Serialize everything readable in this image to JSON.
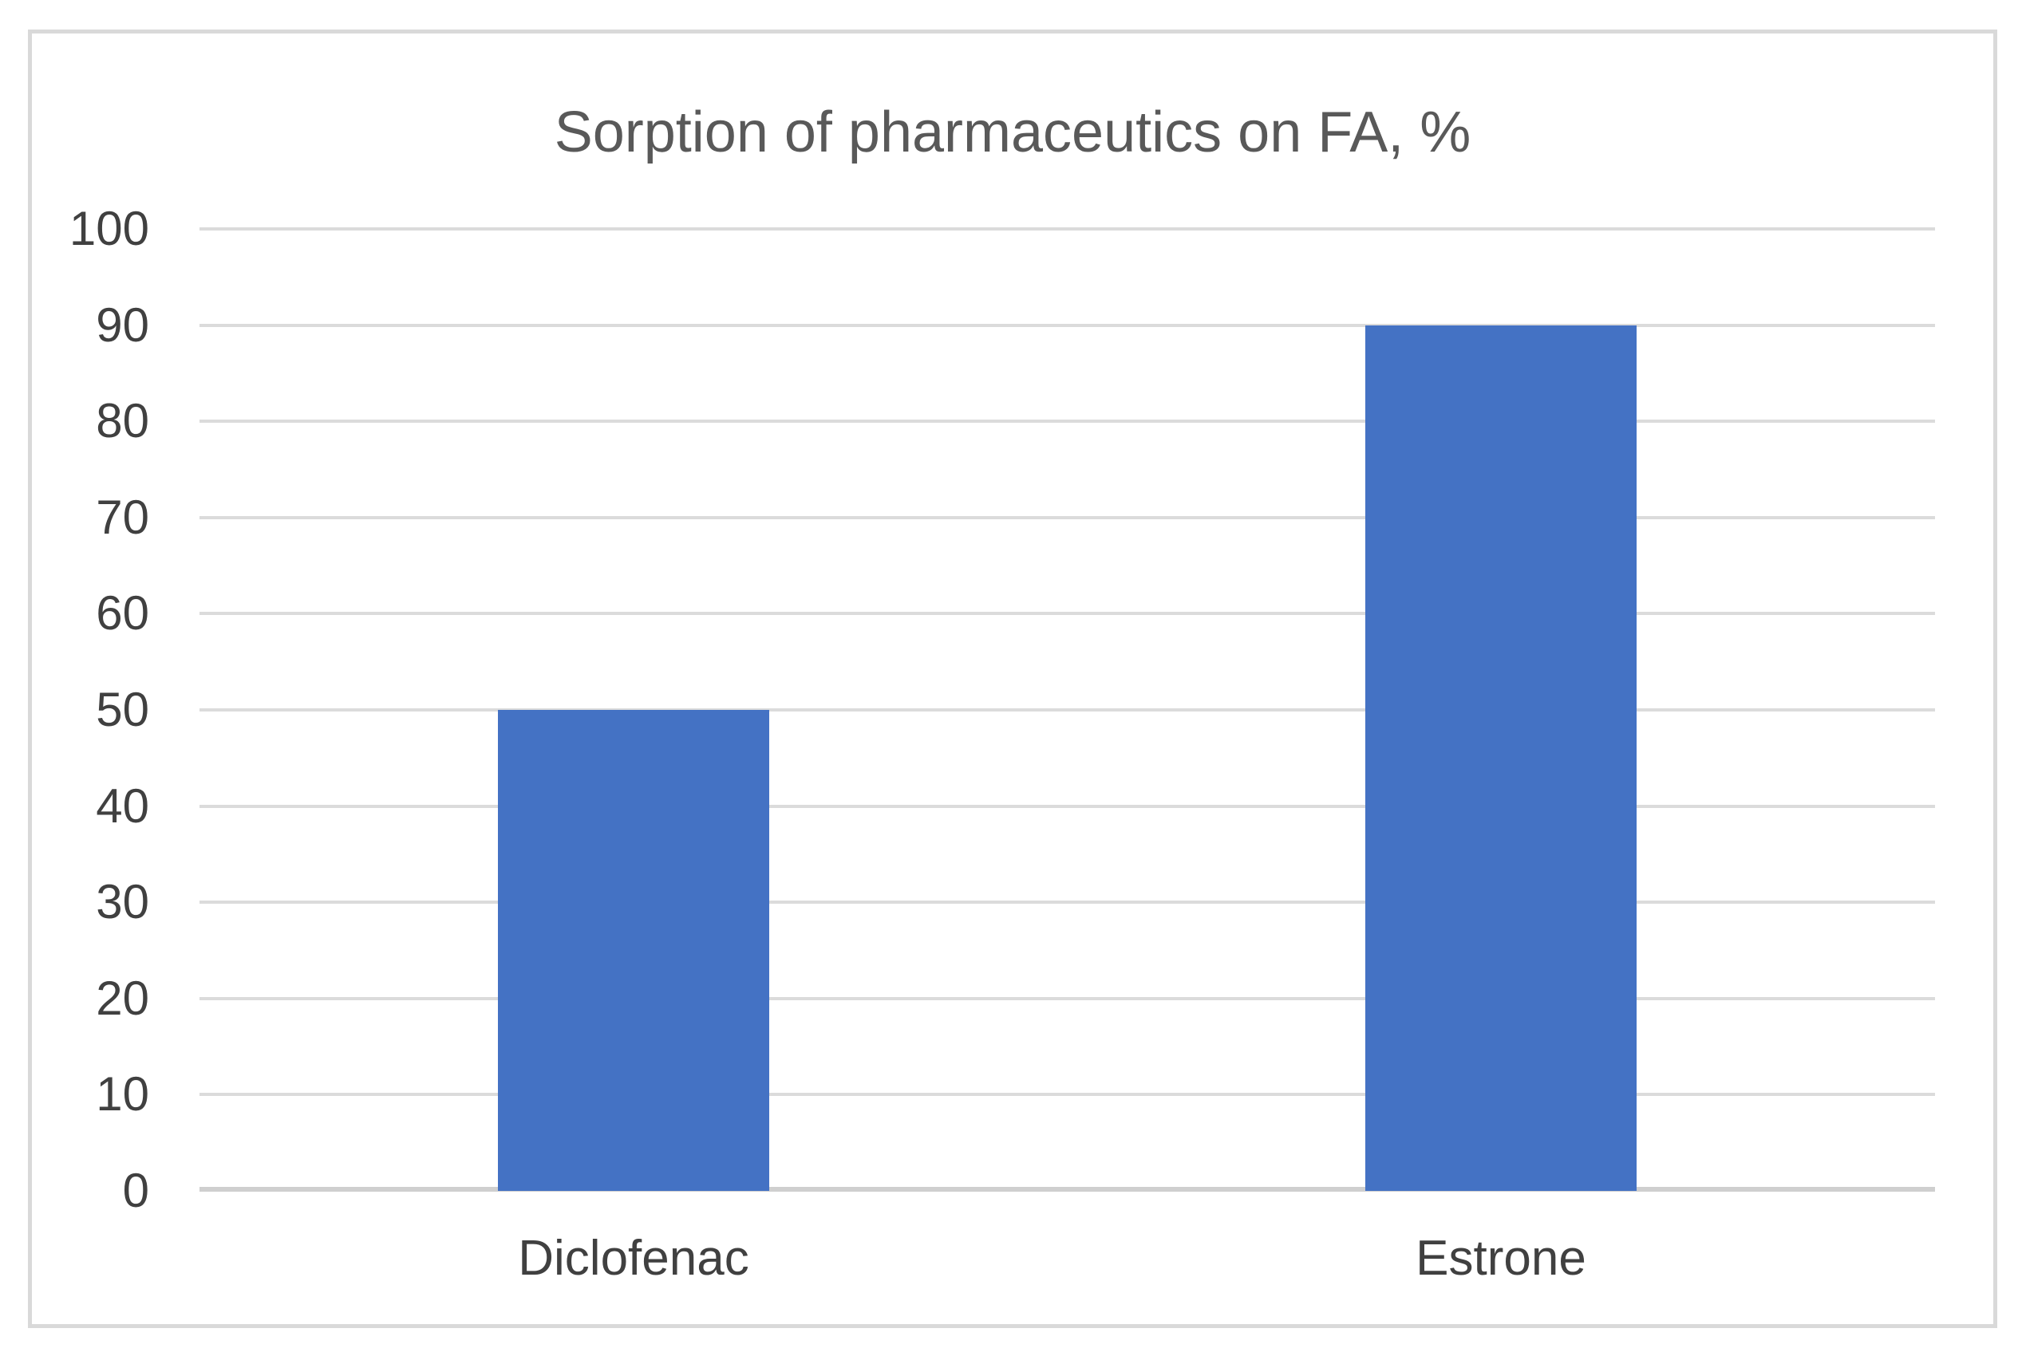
{
  "window": {
    "background_color": "#FFFFFF",
    "frame_border_color": "#D9D9D9"
  },
  "chart_data": {
    "type": "bar",
    "title": "Sorption of pharmaceutics on FA, %",
    "categories": [
      "Diclofenac",
      "Estrone"
    ],
    "values": [
      50,
      90
    ],
    "series": [
      {
        "name": "Sorption of pharmaceutics on FA, %",
        "values": [
          50,
          90
        ]
      }
    ],
    "xlabel": "",
    "ylabel": "",
    "ylim": [
      0,
      100
    ],
    "ytick_step": 10,
    "ytick_labels": [
      "0",
      "10",
      "20",
      "30",
      "40",
      "50",
      "60",
      "70",
      "80",
      "90",
      "100"
    ],
    "grid": "horizontal",
    "legend_position": "none",
    "bar_color": "#4472C4",
    "gridline_color": "#DBDBDB",
    "axis_line_color": "#CFCFCF",
    "title_color": "#595959",
    "tick_label_color": "#404040"
  }
}
